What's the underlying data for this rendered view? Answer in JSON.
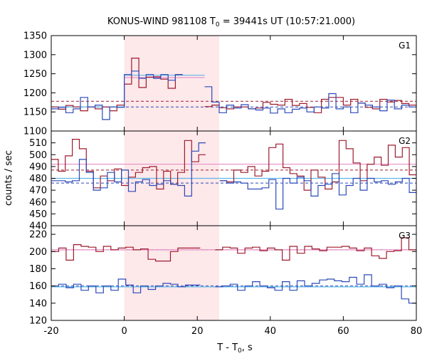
{
  "chart_data": {
    "type": "line",
    "title": "KONUS-WIND 981108 T",
    "title_sub": "0",
    "title_rest": " = 39441s UT (10:57:21.000)",
    "xlabel": "T - T",
    "xlabel_sub": "0",
    "xlabel_rest": ", s",
    "ylabel": "counts / sec",
    "xlim": [
      -20,
      80
    ],
    "x_ticks": [
      -20,
      0,
      20,
      40,
      60,
      80
    ],
    "highlight": {
      "x_start": 0,
      "x_end": 26
    },
    "colors": {
      "dark_red": "#9e1b2c",
      "blue": "#2b4ab8",
      "pink": "#e48ec8",
      "light_blue": "#5fb7e8",
      "highlight": "#fde8ea"
    },
    "panels": [
      {
        "label": "G1",
        "ylim": [
          1100,
          1350
        ],
        "y_ticks": [
          1100,
          1150,
          1200,
          1250,
          1300,
          1350
        ],
        "levels": {
          "red_dashed": 1178,
          "blue_dashed": 1163,
          "pink_fit": 1240,
          "lightblue_fit": 1246
        },
        "red_series": [
          1163,
          1157,
          1167,
          1163,
          1153,
          1163,
          1158,
          1163,
          1153,
          1168,
          1223,
          1291,
          1214,
          1241,
          1242,
          1236,
          1212,
          1248,
          null,
          null,
          null,
          1164,
          1168,
          1161,
          1158,
          1163,
          1163,
          1158,
          1160,
          1175,
          1170,
          1168,
          1183,
          1167,
          1172,
          1162,
          1148,
          1183,
          1188,
          1188,
          1168,
          1183,
          1173,
          1162,
          1158,
          1183,
          1176,
          1180,
          1172,
          1168
        ],
        "blue_series": [
          1158,
          1162,
          1148,
          1158,
          1188,
          1163,
          1168,
          1130,
          1163,
          1162,
          1248,
          1257,
          1238,
          1248,
          1238,
          1248,
          1233,
          1248,
          null,
          null,
          null,
          1216,
          1176,
          1148,
          1168,
          1160,
          1169,
          1158,
          1155,
          1160,
          1147,
          1158,
          1148,
          1157,
          1160,
          1150,
          1163,
          1160,
          1198,
          1158,
          1163,
          1148,
          1173,
          1168,
          1163,
          1153,
          1181,
          1158,
          1168,
          1163
        ]
      },
      {
        "label": "G2",
        "ylim": [
          440,
          520
        ],
        "y_ticks": [
          440,
          450,
          460,
          470,
          480,
          490,
          500,
          510
        ],
        "levels": {
          "red_dashed": 487,
          "blue_dashed": 476,
          "pink_fit": 492,
          "lightblue_fit": 480
        },
        "red_series": [
          496,
          486,
          499,
          513,
          505,
          486,
          472,
          482,
          478,
          488,
          474,
          481,
          485,
          489,
          490,
          471,
          486,
          475,
          485,
          512,
          494,
          500,
          null,
          null,
          478,
          477,
          487,
          485,
          490,
          482,
          486,
          506,
          509,
          489,
          484,
          482,
          470,
          487,
          481,
          471,
          477,
          512,
          505,
          493,
          478,
          492,
          498,
          491,
          508,
          498,
          506,
          483
        ],
        "blue_series": [
          478,
          478,
          477,
          478,
          496,
          485,
          470,
          472,
          485,
          477,
          487,
          469,
          477,
          479,
          474,
          475,
          478,
          475,
          474,
          465,
          503,
          510,
          null,
          null,
          478,
          476,
          477,
          476,
          471,
          471,
          472,
          479,
          454,
          480,
          476,
          481,
          478,
          465,
          474,
          475,
          484,
          466,
          474,
          480,
          470,
          480,
          477,
          478,
          475,
          477,
          480,
          468
        ]
      },
      {
        "label": "G3",
        "ylim": [
          120,
          230
        ],
        "y_ticks": [
          120,
          140,
          160,
          180,
          200,
          220
        ],
        "levels": {
          "red_dashed": 202,
          "blue_dashed": 160,
          "pink_fit": 202,
          "lightblue_fit": 159
        },
        "red_series": [
          200,
          204,
          190,
          208,
          206,
          205,
          200,
          206,
          202,
          204,
          205,
          202,
          203,
          191,
          189,
          189,
          200,
          204,
          204,
          204,
          null,
          null,
          202,
          205,
          204,
          198,
          204,
          205,
          201,
          204,
          202,
          190,
          206,
          198,
          206,
          203,
          201,
          205,
          205,
          206,
          204,
          201,
          204,
          195,
          192,
          200,
          201,
          216,
          202
        ],
        "blue_series": [
          160,
          162,
          158,
          162,
          155,
          160,
          152,
          160,
          155,
          168,
          161,
          152,
          160,
          156,
          160,
          163,
          162,
          159,
          161,
          161,
          null,
          null,
          159,
          160,
          162,
          155,
          160,
          165,
          160,
          158,
          155,
          165,
          155,
          166,
          160,
          163,
          167,
          168,
          166,
          165,
          170,
          162,
          173,
          160,
          162,
          158,
          160,
          145,
          140
        ]
      }
    ]
  }
}
